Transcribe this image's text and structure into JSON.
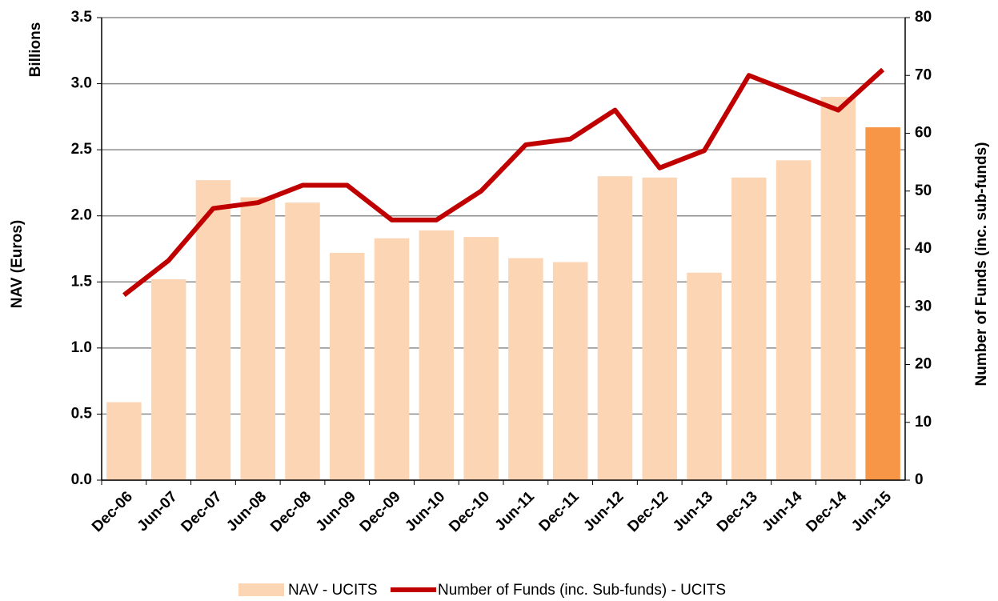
{
  "chart_data": {
    "type": "bar_line",
    "y_label_unit": "Billions",
    "y_label": "NAV (Euros)",
    "y2_label": "Number of Funds (inc. sub-funds)",
    "categories": [
      "Dec-06",
      "Jun-07",
      "Dec-07",
      "Jun-08",
      "Dec-08",
      "Jun-09",
      "Dec-09",
      "Jun-10",
      "Dec-10",
      "Jun-11",
      "Dec-11",
      "Jun-12",
      "Dec-12",
      "Jun-13",
      "Dec-13",
      "Jun-14",
      "Dec-14",
      "Jun-15"
    ],
    "series": [
      {
        "name": "NAV - UCITS",
        "type": "bar",
        "color": "#fcd5b5",
        "colors": [
          "#fcd5b5",
          "#fcd5b5",
          "#fcd5b5",
          "#fcd5b5",
          "#fcd5b5",
          "#fcd5b5",
          "#fcd5b5",
          "#fcd5b5",
          "#fcd5b5",
          "#fcd5b5",
          "#fcd5b5",
          "#fcd5b5",
          "#fcd5b5",
          "#fcd5b5",
          "#fcd5b5",
          "#fcd5b5",
          "#fcd5b5",
          "#f79646"
        ],
        "values": [
          0.59,
          1.52,
          2.27,
          2.14,
          2.1,
          1.72,
          1.83,
          1.89,
          1.84,
          1.68,
          1.65,
          2.3,
          2.29,
          1.57,
          2.29,
          2.42,
          2.9,
          2.67
        ]
      },
      {
        "name": "Number of Funds (inc. Sub-funds) - UCITS",
        "type": "line",
        "axis": "y2",
        "color": "#c00000",
        "values": [
          32,
          38,
          47,
          48,
          51,
          51,
          45,
          45,
          50,
          58,
          59,
          64,
          54,
          57,
          70,
          67,
          64,
          71
        ]
      }
    ],
    "ylim": [
      0,
      3.5
    ],
    "yticks": [
      {
        "value": 0,
        "label": "0.0"
      },
      0.5,
      {
        "value": 1,
        "label": "1.0"
      },
      1.5,
      {
        "value": 2,
        "label": "2.0"
      },
      2.5,
      {
        "value": 3,
        "label": "3.0"
      },
      3.5
    ],
    "y2lim": [
      0,
      80
    ],
    "y2ticks": [
      0,
      10,
      20,
      30,
      40,
      50,
      60,
      70,
      80
    ],
    "grid": true,
    "legend": "bottom"
  }
}
